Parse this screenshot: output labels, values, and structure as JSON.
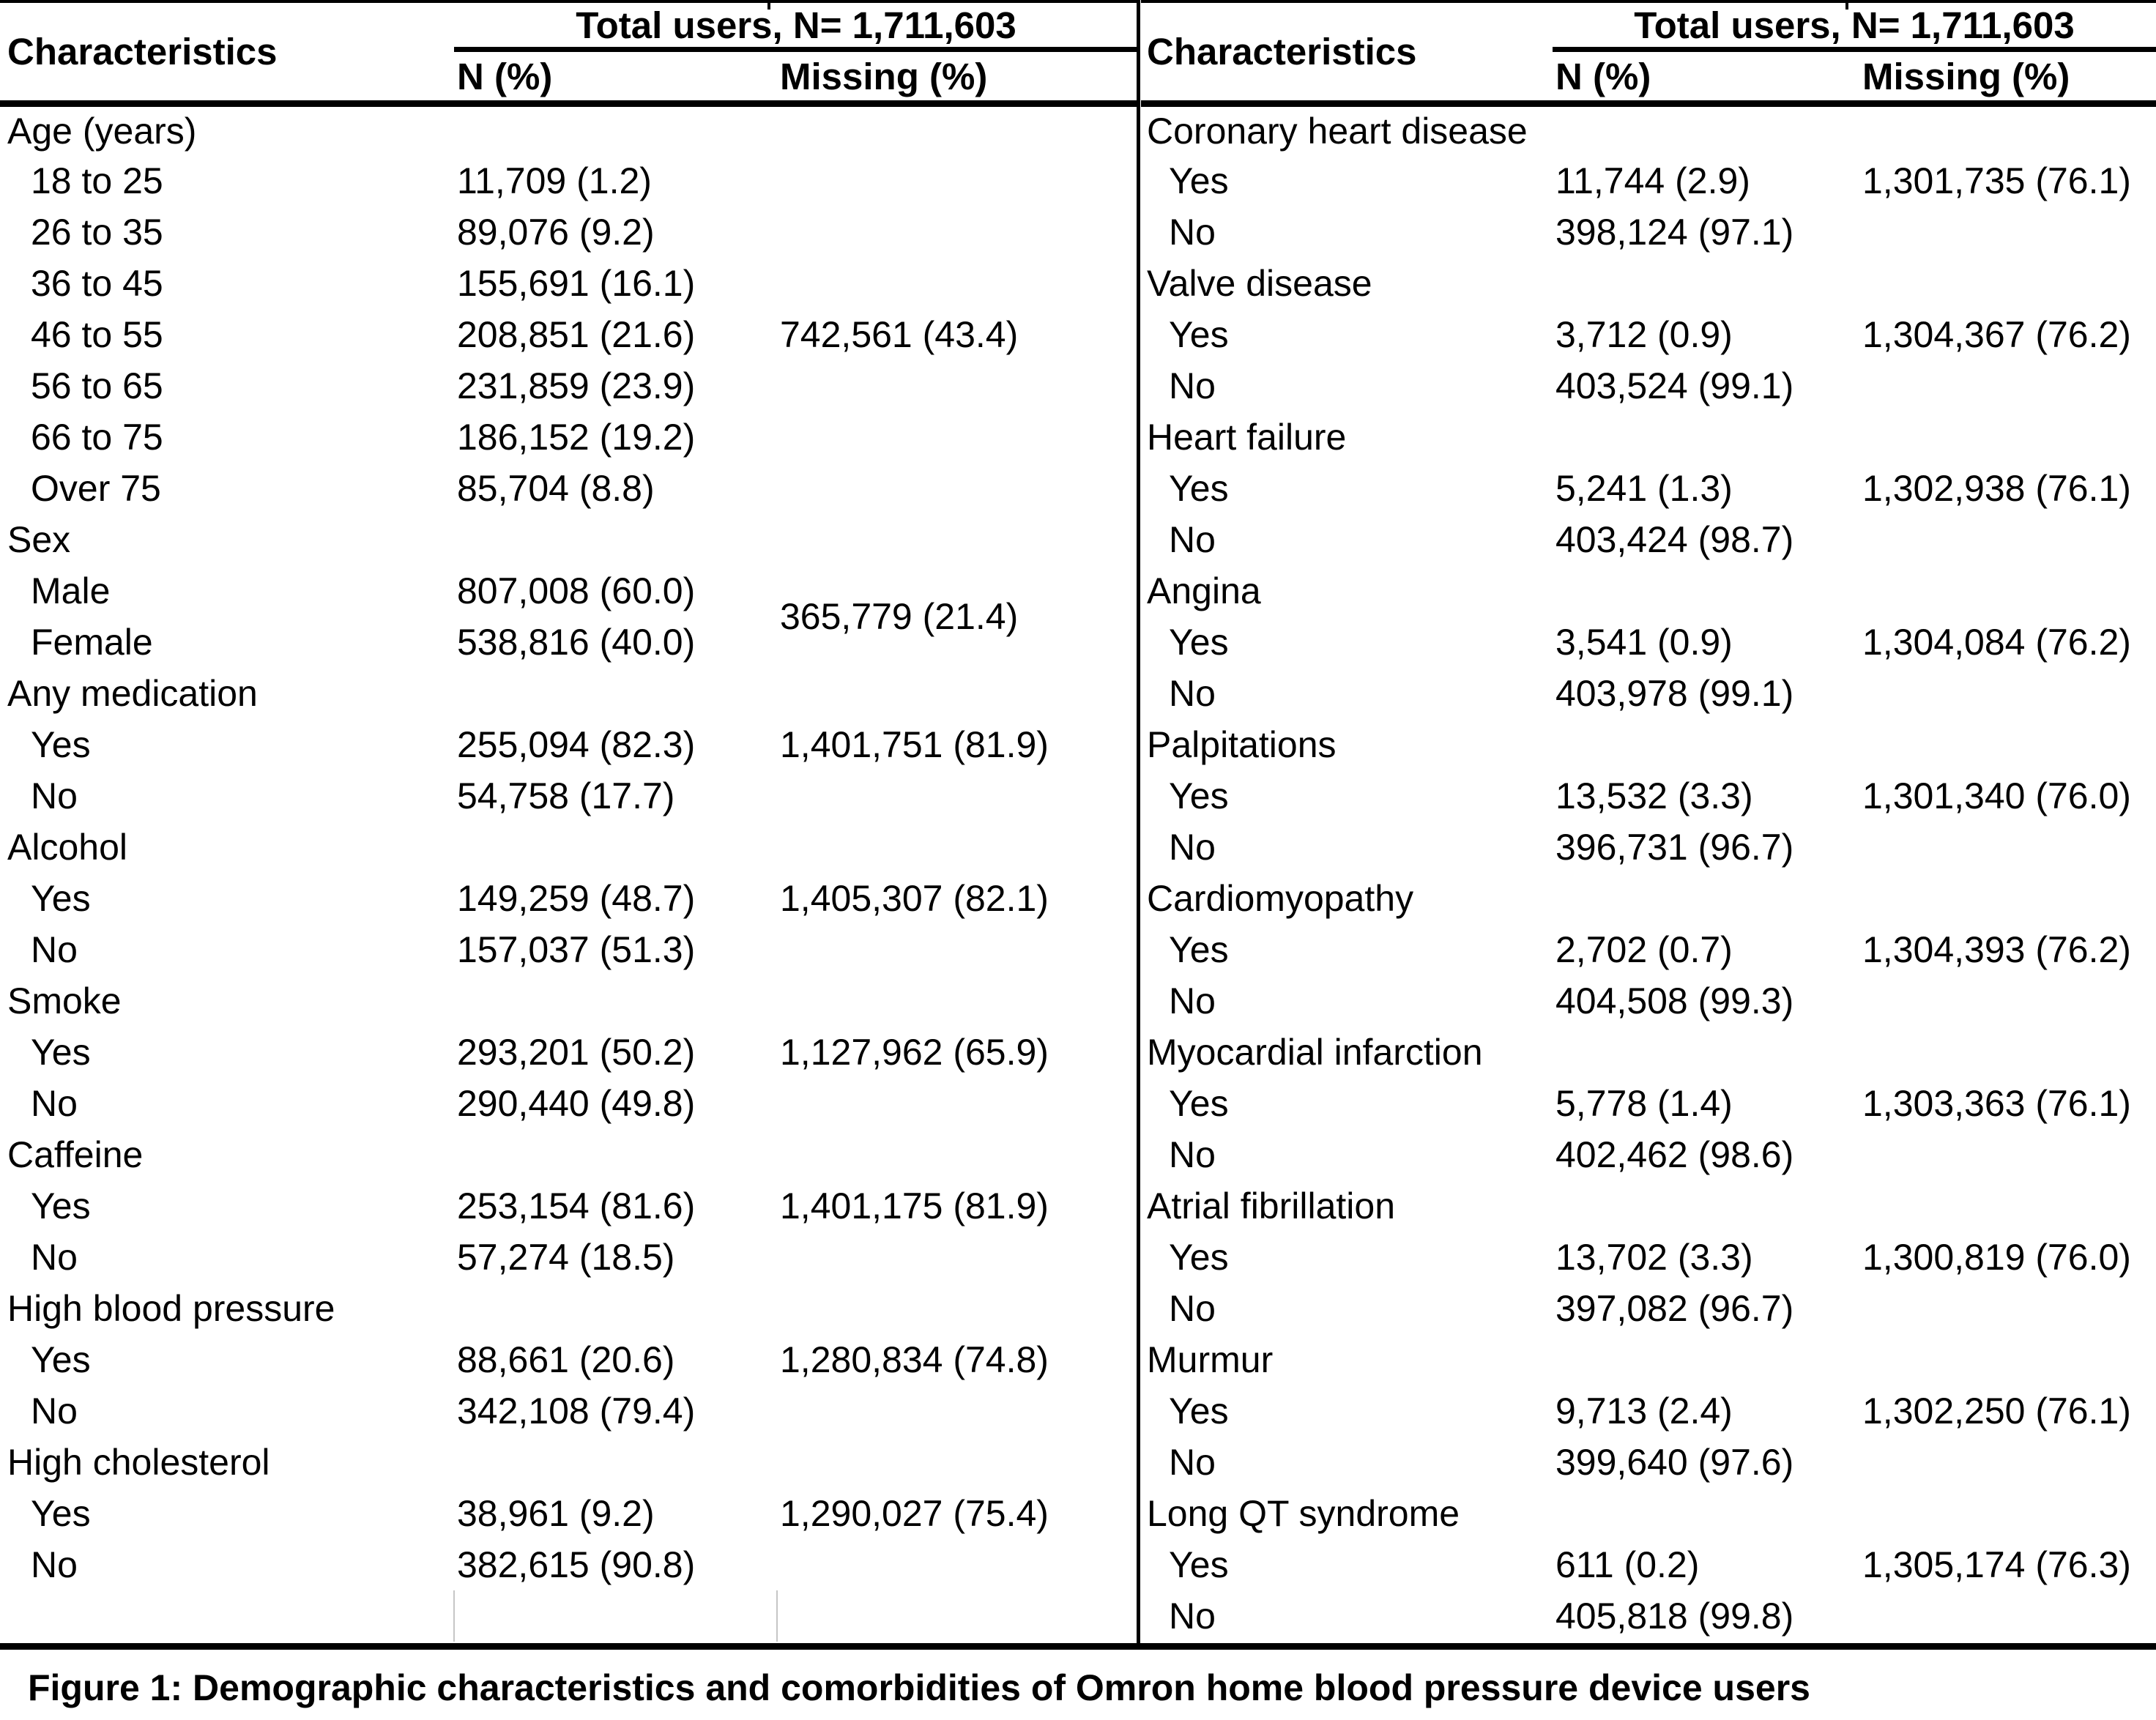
{
  "table_left": {
    "header": {
      "characteristics": "Characteristics",
      "total_users": "Total users, N= 1,711,603",
      "n_pct": "N (%)",
      "missing_pct": "Missing (%)"
    },
    "groups": [
      {
        "label": "Age (years)",
        "missing": "742,561 (43.4)",
        "missing_mode": "span",
        "items": [
          {
            "label": "18 to 25",
            "value": "11,709 (1.2)"
          },
          {
            "label": "26 to 35",
            "value": "89,076 (9.2)"
          },
          {
            "label": "36 to 45",
            "value": "155,691 (16.1)"
          },
          {
            "label": "46 to 55",
            "value": "208,851 (21.6)"
          },
          {
            "label": "56 to 65",
            "value": "231,859 (23.9)"
          },
          {
            "label": "66 to 75",
            "value": "186,152 (19.2)"
          },
          {
            "label": "Over 75",
            "value": "85,704 (8.8)"
          }
        ]
      },
      {
        "label": "Sex",
        "missing": "365,779 (21.4)",
        "missing_mode": "span",
        "items": [
          {
            "label": "Male",
            "value": "807,008 (60.0)"
          },
          {
            "label": "Female",
            "value": "538,816 (40.0)"
          }
        ]
      },
      {
        "label": "Any medication",
        "missing": "1,401,751 (81.9)",
        "missing_mode": "first",
        "items": [
          {
            "label": "Yes",
            "value": "255,094 (82.3)"
          },
          {
            "label": "No",
            "value": "54,758 (17.7)"
          }
        ]
      },
      {
        "label": "Alcohol",
        "missing": "1,405,307 (82.1)",
        "missing_mode": "first",
        "items": [
          {
            "label": "Yes",
            "value": "149,259 (48.7)"
          },
          {
            "label": "No",
            "value": "157,037 (51.3)"
          }
        ]
      },
      {
        "label": "Smoke",
        "missing": "1,127,962 (65.9)",
        "missing_mode": "first",
        "items": [
          {
            "label": "Yes",
            "value": "293,201 (50.2)"
          },
          {
            "label": "No",
            "value": "290,440 (49.8)"
          }
        ]
      },
      {
        "label": "Caffeine",
        "missing": "1,401,175 (81.9)",
        "missing_mode": "first",
        "items": [
          {
            "label": "Yes",
            "value": "253,154 (81.6)"
          },
          {
            "label": "No",
            "value": "57,274 (18.5)"
          }
        ]
      },
      {
        "label": "High blood pressure",
        "missing": "1,280,834 (74.8)",
        "missing_mode": "first",
        "items": [
          {
            "label": "Yes",
            "value": "88,661 (20.6)"
          },
          {
            "label": "No",
            "value": "342,108 (79.4)"
          }
        ]
      },
      {
        "label": "High cholesterol",
        "missing": "1,290,027 (75.4)",
        "missing_mode": "first",
        "items": [
          {
            "label": "Yes",
            "value": "38,961 (9.2)"
          },
          {
            "label": "No",
            "value": "382,615 (90.8)"
          }
        ]
      }
    ]
  },
  "table_right": {
    "header": {
      "characteristics": "Characteristics",
      "total_users": "Total users, N= 1,711,603",
      "n_pct": "N (%)",
      "missing_pct": "Missing (%)"
    },
    "groups": [
      {
        "label": "Coronary heart disease",
        "missing": "1,301,735 (76.1)",
        "missing_mode": "first",
        "items": [
          {
            "label": "Yes",
            "value": "11,744 (2.9)"
          },
          {
            "label": "No",
            "value": "398,124 (97.1)"
          }
        ]
      },
      {
        "label": "Valve disease",
        "missing": "1,304,367 (76.2)",
        "missing_mode": "first",
        "items": [
          {
            "label": "Yes",
            "value": "3,712 (0.9)"
          },
          {
            "label": "No",
            "value": "403,524 (99.1)"
          }
        ]
      },
      {
        "label": "Heart failure",
        "missing": "1,302,938 (76.1)",
        "missing_mode": "first",
        "items": [
          {
            "label": "Yes",
            "value": "5,241 (1.3)"
          },
          {
            "label": "No",
            "value": "403,424 (98.7)"
          }
        ]
      },
      {
        "label": "Angina",
        "missing": "1,304,084 (76.2)",
        "missing_mode": "first",
        "items": [
          {
            "label": "Yes",
            "value": "3,541 (0.9)"
          },
          {
            "label": "No",
            "value": "403,978 (99.1)"
          }
        ]
      },
      {
        "label": "Palpitations",
        "missing": "1,301,340 (76.0)",
        "missing_mode": "first",
        "items": [
          {
            "label": "Yes",
            "value": "13,532 (3.3)"
          },
          {
            "label": "No",
            "value": "396,731 (96.7)"
          }
        ]
      },
      {
        "label": "Cardiomyopathy",
        "missing": "1,304,393 (76.2)",
        "missing_mode": "first",
        "items": [
          {
            "label": "Yes",
            "value": "2,702 (0.7)"
          },
          {
            "label": "No",
            "value": "404,508 (99.3)"
          }
        ]
      },
      {
        "label": "Myocardial infarction",
        "missing": "1,303,363 (76.1)",
        "missing_mode": "first",
        "items": [
          {
            "label": "Yes",
            "value": "5,778 (1.4)"
          },
          {
            "label": "No",
            "value": "402,462 (98.6)"
          }
        ]
      },
      {
        "label": "Atrial fibrillation",
        "missing": "1,300,819 (76.0)",
        "missing_mode": "first",
        "items": [
          {
            "label": "Yes",
            "value": "13,702 (3.3)"
          },
          {
            "label": "No",
            "value": "397,082 (96.7)"
          }
        ]
      },
      {
        "label": "Murmur",
        "missing": "1,302,250 (76.1)",
        "missing_mode": "first",
        "items": [
          {
            "label": "Yes",
            "value": "9,713 (2.4)"
          },
          {
            "label": "No",
            "value": "399,640 (97.6)"
          }
        ]
      },
      {
        "label": "Long QT syndrome",
        "missing": "1,305,174 (76.3)",
        "missing_mode": "first",
        "items": [
          {
            "label": "Yes",
            "value": "611 (0.2)"
          },
          {
            "label": "No",
            "value": "405,818 (99.8)"
          }
        ]
      }
    ]
  },
  "caption": "Figure 1: Demographic characteristics and comorbidities of Omron home blood pressure device users"
}
